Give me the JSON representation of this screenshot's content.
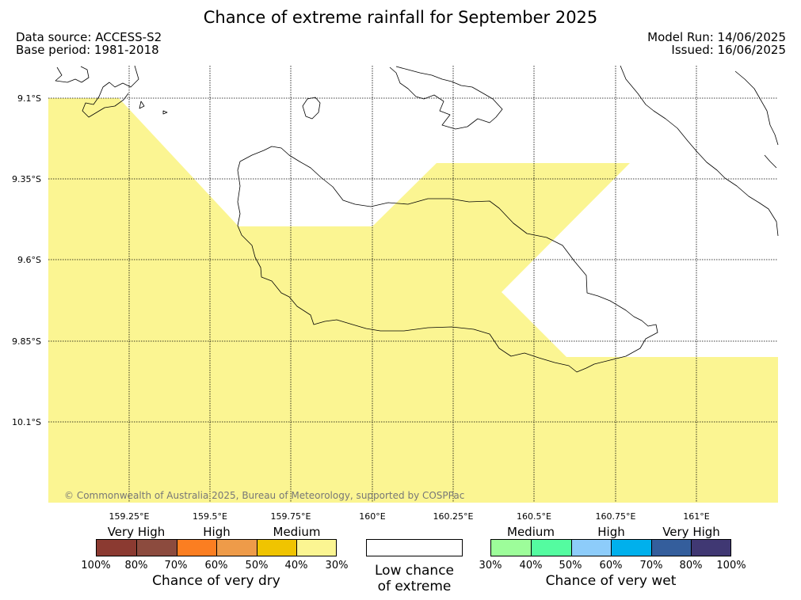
{
  "title": "Chance of extreme rainfall for September 2025",
  "meta": {
    "data_source": "Data source: ACCESS-S2",
    "base_period": "Base period: 1981-2018",
    "model_run": "Model Run: 14/06/2025",
    "issued": "Issued: 16/06/2025"
  },
  "map": {
    "lat_labels": [
      "9.1°S",
      "9.35°S",
      "9.6°S",
      "9.85°S",
      "10.1°S"
    ],
    "lon_labels": [
      "159.25°E",
      "159.5°E",
      "159.75°E",
      "160°E",
      "160.25°E",
      "160.5°E",
      "160.75°E",
      "161°E"
    ],
    "shaded_category": "Medium chance of very dry (40%-30%)",
    "shade_color": "#fbf592",
    "copyright": "© Commonwealth of Australia 2025, Bureau of Meteorology, supported by COSPPac"
  },
  "legend": {
    "dry": {
      "categories": [
        "Very High",
        "High",
        "Medium"
      ],
      "colors": [
        "#8b3a31",
        "#8c4b3e",
        "#fb7e21",
        "#ee9b49",
        "#f0c400",
        "#fbf592"
      ],
      "ticks": [
        "100%",
        "80%",
        "70%",
        "60%",
        "50%",
        "40%",
        "30%"
      ],
      "title": "Chance of very dry"
    },
    "low": {
      "line1": "Low chance",
      "line2": "of extreme"
    },
    "wet": {
      "categories": [
        "Medium",
        "High",
        "Very High"
      ],
      "colors": [
        "#9dfd9a",
        "#54fca0",
        "#8dccfa",
        "#00b0ec",
        "#345e9c",
        "#403873"
      ],
      "ticks": [
        "30%",
        "40%",
        "50%",
        "60%",
        "70%",
        "80%",
        "100%"
      ],
      "title": "Chance of very wet"
    }
  }
}
